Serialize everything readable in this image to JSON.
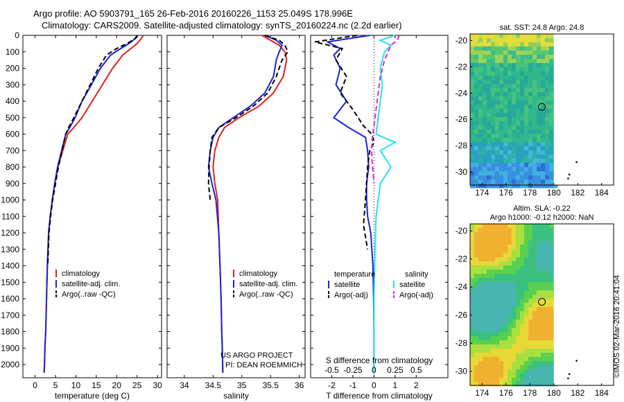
{
  "header": {
    "line1": "Argo profile: AO 5903791_165 26-Feb-2016 20160226_1153 25.049S 178.996E",
    "line2": "Climatology: CARS2009. Satellite-adjusted climatology: synTS_20160224.nc (2.2d earlier)"
  },
  "credit": {
    "project": "US ARGO PROJECT",
    "pi": "PI: DEAN ROEMMICH"
  },
  "watermark": "©IMOS 02-Mar-2016 20:41:04",
  "colors": {
    "climatology": "#e0201a",
    "satellite": "#1a22d6",
    "argo": "#000000",
    "sal_sat": "#22e4ee",
    "sal_argo": "#e020e8"
  },
  "chart_data": [
    {
      "type": "line",
      "xlabel": "temperature (deg C)",
      "ylabel": "",
      "xlim": [
        -3,
        31
      ],
      "ylim": [
        2080,
        0
      ],
      "x_ticks": [
        0,
        5,
        10,
        15,
        20,
        25,
        30
      ],
      "y_ticks": [
        0,
        100,
        200,
        300,
        400,
        500,
        600,
        700,
        800,
        900,
        1000,
        1100,
        1200,
        1300,
        1400,
        1500,
        1600,
        1700,
        1800,
        1900,
        2000
      ],
      "legend": [
        "climatology",
        "satellite-adj. clim.",
        "Argo(..raw -QC)"
      ],
      "series": [
        {
          "name": "climatology",
          "color": "climatology",
          "dashed": false,
          "x": [
            26.5,
            26.0,
            25.0,
            23.5,
            21.5,
            19.0,
            16.5,
            14.0,
            11.5,
            9.5,
            8.0,
            6.8,
            5.6,
            4.8,
            4.2,
            3.7,
            3.3,
            3.0,
            2.8,
            2.6,
            2.4,
            2.3,
            2.2
          ],
          "y": [
            0,
            20,
            50,
            80,
            120,
            200,
            300,
            400,
            500,
            560,
            600,
            700,
            800,
            900,
            1000,
            1100,
            1200,
            1400,
            1600,
            1800,
            1900,
            2000,
            2050
          ]
        },
        {
          "name": "satellite-adj. clim.",
          "color": "satellite",
          "dashed": false,
          "x": [
            25.2,
            24.5,
            23.0,
            21.0,
            18.5,
            16.0,
            13.8,
            11.5,
            9.8,
            8.5,
            7.5,
            6.5,
            5.5,
            4.8,
            4.2,
            3.7,
            3.3,
            3.0,
            2.8,
            2.6,
            2.4,
            2.3,
            2.2
          ],
          "y": [
            0,
            20,
            50,
            80,
            120,
            200,
            300,
            400,
            500,
            560,
            600,
            700,
            800,
            900,
            1000,
            1100,
            1200,
            1400,
            1600,
            1800,
            1900,
            2000,
            2050
          ]
        },
        {
          "name": "Argo(..raw -QC)",
          "color": "argo",
          "dashed": true,
          "x": [
            25.0,
            24.5,
            22.5,
            20.0,
            17.5,
            15.5,
            13.5,
            11.5,
            9.5,
            8.2,
            7.5,
            6.6,
            5.7,
            5.0,
            4.3,
            3.8,
            3.4,
            3.1
          ],
          "y": [
            0,
            20,
            50,
            80,
            120,
            200,
            300,
            400,
            500,
            560,
            600,
            700,
            800,
            900,
            1000,
            1100,
            1200,
            1400
          ]
        }
      ]
    },
    {
      "type": "line",
      "xlabel": "salinity",
      "ylabel": "",
      "xlim": [
        33.7,
        36.1
      ],
      "ylim": [
        2080,
        0
      ],
      "x_ticks": [
        34,
        34.5,
        35,
        35.5,
        36
      ],
      "legend": [
        "climatology",
        "satellite-adj. clim.",
        "Argo(..raw -QC)"
      ],
      "series": [
        {
          "name": "climatology",
          "color": "climatology",
          "dashed": false,
          "x": [
            35.35,
            35.5,
            35.65,
            35.75,
            35.78,
            35.72,
            35.55,
            35.3,
            34.95,
            34.7,
            34.6,
            34.53,
            34.5,
            34.53,
            34.58,
            34.6,
            34.62,
            34.64,
            34.65,
            34.66,
            34.67
          ],
          "y": [
            0,
            30,
            60,
            100,
            150,
            250,
            350,
            430,
            500,
            560,
            620,
            700,
            800,
            900,
            1000,
            1200,
            1400,
            1600,
            1800,
            1900,
            2050
          ]
        },
        {
          "name": "satellite-adj. clim.",
          "color": "satellite",
          "dashed": false,
          "x": [
            35.4,
            35.6,
            35.7,
            35.65,
            35.6,
            35.55,
            35.4,
            35.15,
            34.85,
            34.6,
            34.5,
            34.45,
            34.42,
            34.48,
            34.55,
            34.6,
            34.62,
            34.64,
            34.65,
            34.66,
            34.67
          ],
          "y": [
            0,
            30,
            60,
            100,
            150,
            250,
            350,
            430,
            500,
            560,
            620,
            700,
            800,
            900,
            1000,
            1200,
            1400,
            1600,
            1800,
            1900,
            2050
          ]
        },
        {
          "name": "Argo(..raw -QC)",
          "color": "argo",
          "dashed": true,
          "x": [
            35.4,
            35.65,
            35.75,
            35.8,
            35.7,
            35.6,
            35.45,
            35.2,
            34.9,
            34.6,
            34.48,
            34.45,
            34.43,
            34.42,
            34.45
          ],
          "y": [
            0,
            30,
            60,
            100,
            150,
            250,
            350,
            430,
            500,
            560,
            620,
            700,
            800,
            900,
            1000
          ]
        }
      ]
    },
    {
      "type": "line",
      "xlabel": "T difference from climatology",
      "ylabel": "",
      "xlim": [
        -3,
        3.5
      ],
      "ylim": [
        2080,
        0
      ],
      "x_ticks": [
        -2,
        -1,
        0,
        1,
        2
      ],
      "top_label": "S difference from climatology",
      "top_ticks": [
        "-0.5",
        "-0.25",
        "0",
        "0.25",
        "0.5"
      ],
      "top_tick_pos": [
        -2,
        -1,
        0,
        1,
        2
      ],
      "legend_groups": [
        {
          "title": "temperature",
          "items": [
            "satellite",
            "Argo(-adj)"
          ]
        },
        {
          "title": "salinity",
          "items": [
            "satellite",
            "Argo(-adj)"
          ]
        }
      ],
      "series": [
        {
          "name": "satellite",
          "group": "temperature",
          "color": "satellite",
          "dashed": false,
          "x": [
            -0.2,
            -2.2,
            -1.6,
            -1.9,
            -1.6,
            -1.8,
            -1.3,
            -1.9,
            -1.2,
            -0.4,
            -0.3,
            -0.25,
            -0.35,
            -0.35,
            -0.3,
            -0.15,
            -0.1,
            -0.05,
            -0.02,
            0,
            0
          ],
          "y": [
            0,
            40,
            80,
            120,
            200,
            300,
            400,
            500,
            560,
            620,
            700,
            800,
            900,
            1000,
            1100,
            1200,
            1300,
            1400,
            1600,
            1800,
            2050
          ]
        },
        {
          "name": "Argo(-adj)",
          "group": "temperature",
          "color": "argo",
          "dashed": true,
          "x": [
            -0.8,
            -2.8,
            -1.5,
            -1.8,
            -1.3,
            -1.6,
            -1.0,
            -0.5,
            -0.1,
            0,
            -0.2,
            -0.3,
            -0.4,
            -0.5,
            -0.3
          ],
          "y": [
            0,
            40,
            80,
            150,
            250,
            350,
            450,
            550,
            600,
            650,
            700,
            800,
            1000,
            1150,
            1300
          ]
        },
        {
          "name": "satellite",
          "group": "salinity",
          "color": "sal_sat",
          "dashed": false,
          "x": [
            1.0,
            0.3,
            0.8,
            0.5,
            0.3,
            0.4,
            0.3,
            0.2,
            0.1,
            1.0,
            0.3,
            0.8,
            0.3,
            0.2,
            0.1,
            0.05,
            0,
            0
          ],
          "y": [
            0,
            30,
            60,
            100,
            200,
            300,
            400,
            500,
            600,
            650,
            700,
            800,
            900,
            1000,
            1100,
            1300,
            1600,
            2050
          ]
        },
        {
          "name": "Argo(-adj)",
          "group": "salinity",
          "color": "sal_argo",
          "dashed": true,
          "x": [
            1.2,
            1.1,
            0.8,
            0.5,
            0.3,
            0.2,
            0.1,
            0,
            -0.1,
            -0.1,
            0
          ],
          "y": [
            0,
            30,
            60,
            150,
            250,
            350,
            450,
            550,
            650,
            750,
            900
          ]
        }
      ]
    },
    {
      "type": "heatmap",
      "title": "sat. SST: 24.8  Argo: 24.8",
      "x_ticks": [
        174,
        176,
        178,
        180,
        182,
        184
      ],
      "y_ticks": [
        -20,
        -22,
        -24,
        -26,
        -28,
        -30
      ],
      "xlim": [
        173,
        185
      ],
      "ylim": [
        -31,
        -19.5
      ],
      "marker": {
        "x": 179,
        "y": -25.05
      }
    },
    {
      "type": "heatmap",
      "title": "Altim. SLA: -0.22",
      "subtitle": "Argo h1000: -0.12  h2000: NaN",
      "x_ticks": [
        174,
        176,
        178,
        180,
        182,
        184
      ],
      "y_ticks": [
        -20,
        -22,
        -24,
        -26,
        -28,
        -30
      ],
      "xlim": [
        173,
        185
      ],
      "ylim": [
        -31,
        -19.5
      ],
      "marker": {
        "x": 179,
        "y": -25.05
      }
    }
  ]
}
